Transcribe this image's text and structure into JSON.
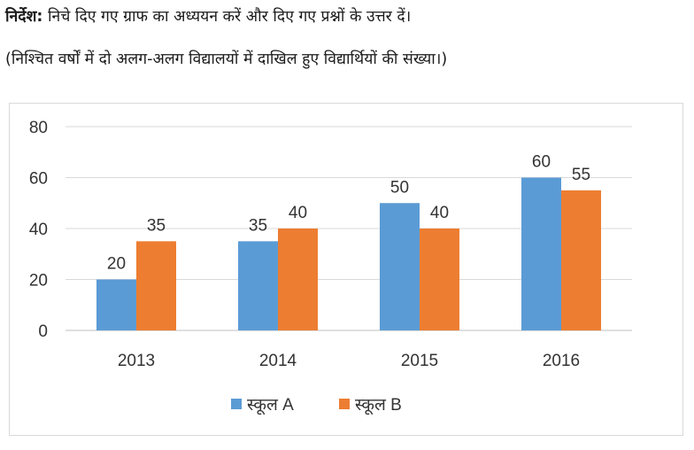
{
  "directions": {
    "lead": "निर्देश:",
    "text": "निचे दिए गए ग्राफ का अध्ययन करें और दिए गए प्रश्नों के उत्तर दें।",
    "note": "(निश्चित वर्षों में दो अलग-अलग विद्यालयों में दाखिल हुए विद्यार्थियों की संख्या।)"
  },
  "colors": {
    "series_a": "#5b9bd5",
    "series_b": "#ed7d31",
    "grid": "#d9d9d9"
  },
  "chart_data": {
    "type": "bar",
    "title": "",
    "xlabel": "",
    "ylabel": "",
    "categories": [
      "2013",
      "2014",
      "2015",
      "2016"
    ],
    "series": [
      {
        "name": "स्कूल A",
        "values": [
          20,
          35,
          50,
          60
        ]
      },
      {
        "name": "स्कूल B",
        "values": [
          35,
          40,
          40,
          55
        ]
      }
    ],
    "ylim": [
      0,
      80
    ],
    "yticks": [
      0,
      20,
      40,
      60,
      80
    ],
    "grid": true,
    "legend": "bottom-center",
    "data_labels": true
  }
}
